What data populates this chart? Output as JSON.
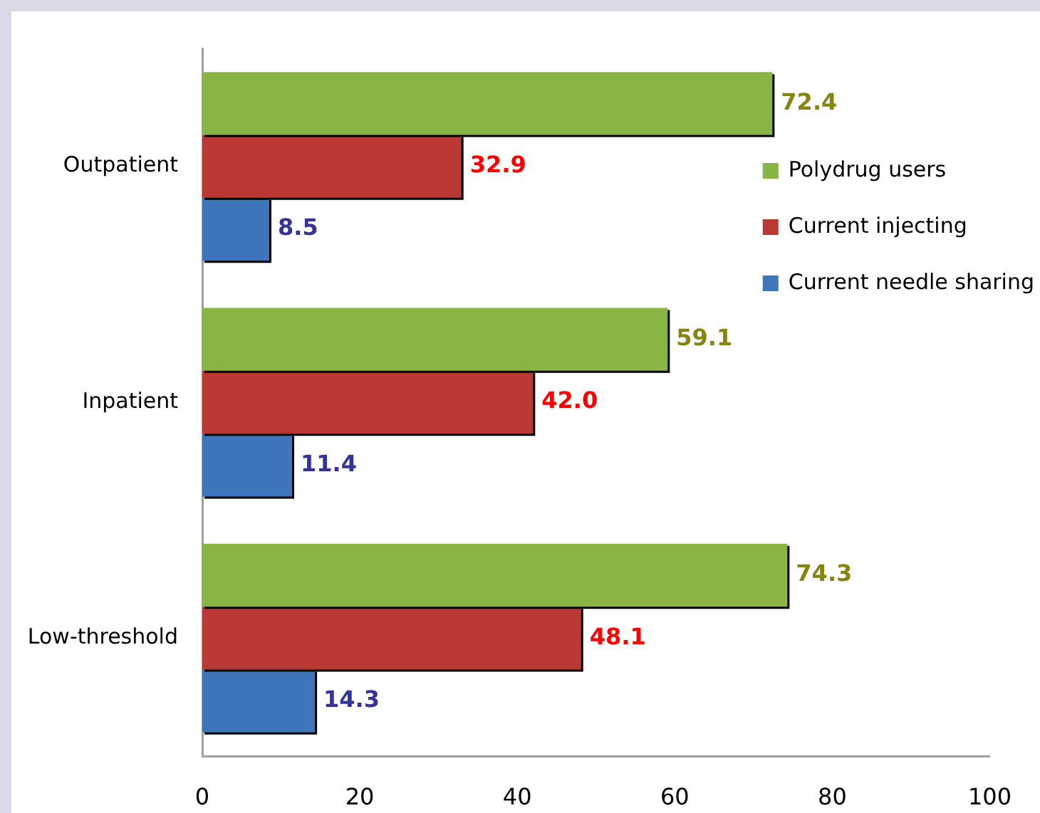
{
  "chart_data": {
    "type": "bar",
    "orientation": "horizontal",
    "categories": [
      "Outpatient",
      "Inpatient",
      "Low-threshold"
    ],
    "series": [
      {
        "name": "Polydrug users",
        "color": "#8ab545",
        "values": [
          72.4,
          59.1,
          74.3
        ],
        "value_labels": [
          "72.4",
          "59.1",
          "74.3"
        ]
      },
      {
        "name": "Current injecting",
        "color": "#bb3934",
        "values": [
          32.9,
          42.0,
          48.1
        ],
        "value_labels": [
          "32.9",
          "42.0",
          "48.1"
        ]
      },
      {
        "name": "Current needle sharing",
        "color": "#3f75ba",
        "values": [
          8.5,
          11.4,
          14.3
        ],
        "value_labels": [
          "8.5",
          "11.4",
          "14.3"
        ]
      }
    ],
    "xlim": [
      0,
      100
    ],
    "xticks": [
      0,
      20,
      40,
      60,
      80,
      100
    ],
    "grid": false,
    "legend": "top right"
  }
}
